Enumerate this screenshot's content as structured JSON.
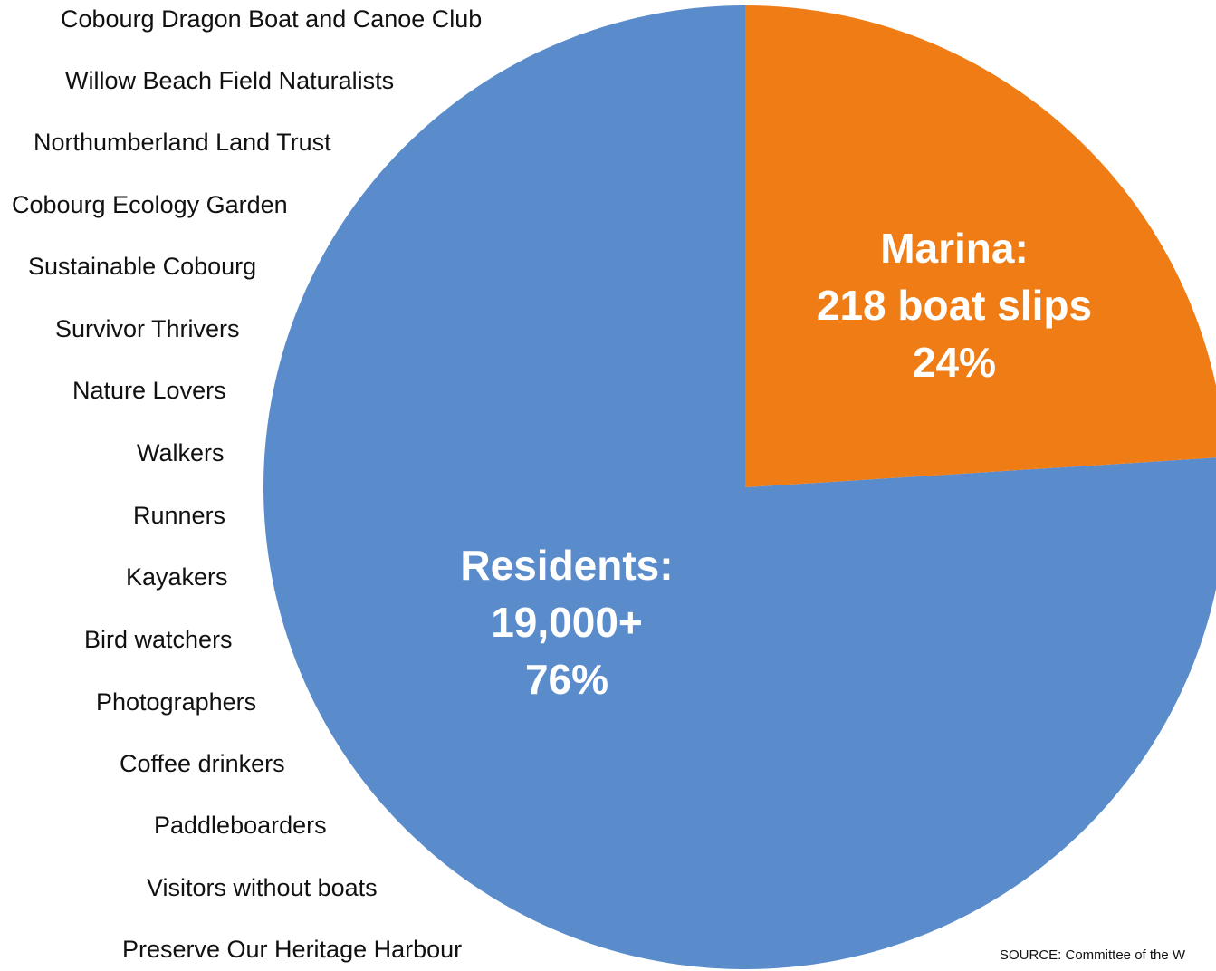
{
  "chart_data": {
    "type": "pie",
    "slices": [
      {
        "name": "Residents",
        "value": 76,
        "lines": [
          "Residents:",
          "19,000+",
          "76%"
        ],
        "color": "#5a8ccc"
      },
      {
        "name": "Marina",
        "value": 24,
        "lines": [
          "Marina:",
          "218 boat slips",
          "24%"
        ],
        "color": "#f07c15"
      }
    ],
    "start_angle_deg": 0,
    "direction": "clockwise"
  },
  "groups": [
    "Cobourg Dragon Boat and Canoe Club",
    "Willow Beach Field Naturalists",
    "Northumberland Land Trust",
    "Cobourg Ecology Garden",
    "Sustainable Cobourg",
    "Survivor Thrivers",
    "Nature Lovers",
    "Walkers",
    "Runners",
    "Kayakers",
    "Bird watchers",
    "Photographers",
    "Coffee drinkers",
    "Paddleboarders",
    "Visitors without boats",
    "Preserve Our Heritage Harbour"
  ],
  "source": "SOURCE: Committee of the W"
}
